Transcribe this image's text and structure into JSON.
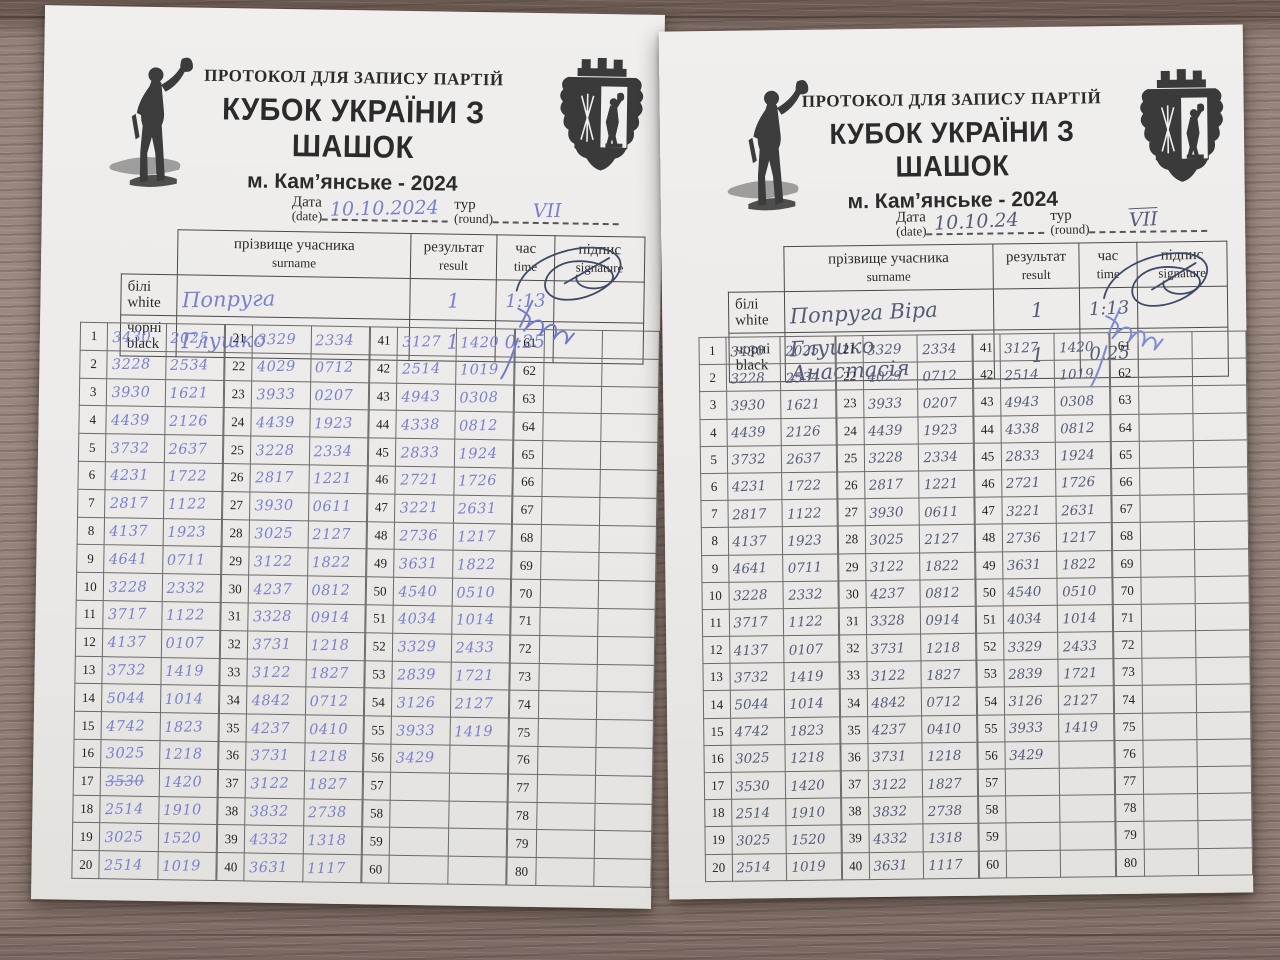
{
  "icons": {
    "left_emblem": "prometheus-statue",
    "right_emblem": "kamianske-coat-of-arms"
  },
  "colors": {
    "wood": "#94827a",
    "paper": "#eceae8",
    "printed_text": "#2b2b2b",
    "left_sheet_ink": "#7a80cf",
    "right_sheet_ink": "#565c78",
    "signature_dark": "#3f4a66",
    "signature_blue": "#6f7cc7"
  },
  "grid": {
    "rows_per_col": 20,
    "col_starts": [
      1,
      21,
      41,
      61
    ]
  },
  "sheets": [
    {
      "header": {
        "protocol_title": "ПРОТОКОЛ ДЛЯ ЗАПИСУ ПАРТІЙ",
        "event_title": "КУБОК УКРАЇНИ З ШАШОК",
        "location_line": "м. Кам’янське - 2024"
      },
      "date_label": "Дата",
      "date_sublabel": "(date)",
      "date_value": "10.10.2024",
      "round_label": "тур",
      "round_sublabel": "(round)",
      "round_value": "VII",
      "players_table": {
        "surname_uk": "прізвище учасника",
        "surname_en": "surname",
        "result_uk": "результат",
        "result_en": "result",
        "time_uk": "час",
        "time_en": "time",
        "signature_uk": "підпис",
        "signature_en": "signature",
        "rows": [
          {
            "side_uk": "білі",
            "side_en": "white",
            "name": "Попруга",
            "result": "1",
            "time": "1:13"
          },
          {
            "side_uk": "чорні",
            "side_en": "black",
            "name": "Глушко",
            "result": "1",
            "time": "0:25"
          }
        ]
      },
      "ink_color": "#7a80cf",
      "signature_colors": [
        "#3f4a66",
        "#6f7cc7"
      ],
      "strikes": [
        {
          "col": 0,
          "row": 17,
          "cell": "w"
        }
      ],
      "moves": {
        "col1": [
          [
            "3430",
            "2025"
          ],
          [
            "3228",
            "2534"
          ],
          [
            "3930",
            "1621"
          ],
          [
            "4439",
            "2126"
          ],
          [
            "3732",
            "2637"
          ],
          [
            "4231",
            "1722"
          ],
          [
            "2817",
            "1122"
          ],
          [
            "4137",
            "1923"
          ],
          [
            "4641",
            "0711"
          ],
          [
            "3228",
            "2332"
          ],
          [
            "3717",
            "1122"
          ],
          [
            "4137",
            "0107"
          ],
          [
            "3732",
            "1419"
          ],
          [
            "5044",
            "1014"
          ],
          [
            "4742",
            "1823"
          ],
          [
            "3025",
            "1218"
          ],
          [
            "3530",
            "1420"
          ],
          [
            "2514",
            "1910"
          ],
          [
            "3025",
            "1520"
          ],
          [
            "2514",
            "1019"
          ]
        ],
        "col2": [
          [
            "3329",
            "2334"
          ],
          [
            "4029",
            "0712"
          ],
          [
            "3933",
            "0207"
          ],
          [
            "4439",
            "1923"
          ],
          [
            "3228",
            "2334"
          ],
          [
            "2817",
            "1221"
          ],
          [
            "3930",
            "0611"
          ],
          [
            "3025",
            "2127"
          ],
          [
            "3122",
            "1822"
          ],
          [
            "4237",
            "0812"
          ],
          [
            "3328",
            "0914"
          ],
          [
            "3731",
            "1218"
          ],
          [
            "3122",
            "1827"
          ],
          [
            "4842",
            "0712"
          ],
          [
            "4237",
            "0410"
          ],
          [
            "3731",
            "1218"
          ],
          [
            "3122",
            "1827"
          ],
          [
            "3832",
            "2738"
          ],
          [
            "4332",
            "1318"
          ],
          [
            "3631",
            "1117"
          ]
        ],
        "col3": [
          [
            "3127",
            "1420"
          ],
          [
            "2514",
            "1019"
          ],
          [
            "4943",
            "0308"
          ],
          [
            "4338",
            "0812"
          ],
          [
            "2833",
            "1924"
          ],
          [
            "2721",
            "1726"
          ],
          [
            "3221",
            "2631"
          ],
          [
            "2736",
            "1217"
          ],
          [
            "3631",
            "1822"
          ],
          [
            "4540",
            "0510"
          ],
          [
            "4034",
            "1014"
          ],
          [
            "3329",
            "2433"
          ],
          [
            "2839",
            "1721"
          ],
          [
            "3126",
            "2127"
          ],
          [
            "3933",
            "1419"
          ],
          [
            "3429",
            ""
          ]
        ],
        "col4": []
      }
    },
    {
      "header": {
        "protocol_title": "ПРОТОКОЛ ДЛЯ ЗАПИСУ ПАРТІЙ",
        "event_title": "КУБОК УКРАЇНИ З ШАШОК",
        "location_line": "м. Кам’янське - 2024"
      },
      "date_label": "Дата",
      "date_sublabel": "(date)",
      "date_value": "10.10.24",
      "round_label": "тур",
      "round_sublabel": "(round)",
      "round_value": "VII",
      "players_table": {
        "surname_uk": "прізвище учасника",
        "surname_en": "surname",
        "result_uk": "результат",
        "result_en": "result",
        "time_uk": "час",
        "time_en": "time",
        "signature_uk": "підпис",
        "signature_en": "signature",
        "rows": [
          {
            "side_uk": "білі",
            "side_en": "white",
            "name": "Попруга Віра",
            "result": "1",
            "time": "1:13"
          },
          {
            "side_uk": "чорні",
            "side_en": "black",
            "name": "Глушко Анастасія",
            "result": "1",
            "time": "0:25"
          }
        ]
      },
      "ink_color": "#565c78",
      "signature_colors": [
        "#3f4a66",
        "#7e8ad0"
      ],
      "strikes": [],
      "moves": {
        "col1": [
          [
            "3430",
            "2025"
          ],
          [
            "3228",
            "2534"
          ],
          [
            "3930",
            "1621"
          ],
          [
            "4439",
            "2126"
          ],
          [
            "3732",
            "2637"
          ],
          [
            "4231",
            "1722"
          ],
          [
            "2817",
            "1122"
          ],
          [
            "4137",
            "1923"
          ],
          [
            "4641",
            "0711"
          ],
          [
            "3228",
            "2332"
          ],
          [
            "3717",
            "1122"
          ],
          [
            "4137",
            "0107"
          ],
          [
            "3732",
            "1419"
          ],
          [
            "5044",
            "1014"
          ],
          [
            "4742",
            "1823"
          ],
          [
            "3025",
            "1218"
          ],
          [
            "3530",
            "1420"
          ],
          [
            "2514",
            "1910"
          ],
          [
            "3025",
            "1520"
          ],
          [
            "2514",
            "1019"
          ]
        ],
        "col2": [
          [
            "3329",
            "2334"
          ],
          [
            "4029",
            "0712"
          ],
          [
            "3933",
            "0207"
          ],
          [
            "4439",
            "1923"
          ],
          [
            "3228",
            "2334"
          ],
          [
            "2817",
            "1221"
          ],
          [
            "3930",
            "0611"
          ],
          [
            "3025",
            "2127"
          ],
          [
            "3122",
            "1822"
          ],
          [
            "4237",
            "0812"
          ],
          [
            "3328",
            "0914"
          ],
          [
            "3731",
            "1218"
          ],
          [
            "3122",
            "1827"
          ],
          [
            "4842",
            "0712"
          ],
          [
            "4237",
            "0410"
          ],
          [
            "3731",
            "1218"
          ],
          [
            "3122",
            "1827"
          ],
          [
            "3832",
            "2738"
          ],
          [
            "4332",
            "1318"
          ],
          [
            "3631",
            "1117"
          ]
        ],
        "col3": [
          [
            "3127",
            "1420"
          ],
          [
            "2514",
            "1019"
          ],
          [
            "4943",
            "0308"
          ],
          [
            "4338",
            "0812"
          ],
          [
            "2833",
            "1924"
          ],
          [
            "2721",
            "1726"
          ],
          [
            "3221",
            "2631"
          ],
          [
            "2736",
            "1217"
          ],
          [
            "3631",
            "1822"
          ],
          [
            "4540",
            "0510"
          ],
          [
            "4034",
            "1014"
          ],
          [
            "3329",
            "2433"
          ],
          [
            "2839",
            "1721"
          ],
          [
            "3126",
            "2127"
          ],
          [
            "3933",
            "1419"
          ],
          [
            "3429",
            ""
          ]
        ],
        "col4": []
      }
    }
  ]
}
